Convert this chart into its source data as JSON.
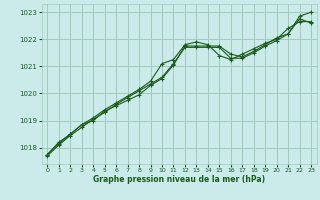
{
  "title": "Graphe pression niveau de la mer (hPa)",
  "bg_color": "#cbeaea",
  "grid_color": "#a0ccbb",
  "line_color": "#1a5c1a",
  "xlim": [
    -0.5,
    23.5
  ],
  "ylim": [
    1017.4,
    1023.3
  ],
  "yticks": [
    1018,
    1019,
    1020,
    1021,
    1022,
    1023
  ],
  "xticks": [
    0,
    1,
    2,
    3,
    4,
    5,
    6,
    7,
    8,
    9,
    10,
    11,
    12,
    13,
    14,
    15,
    16,
    17,
    18,
    19,
    20,
    21,
    22,
    23
  ],
  "series1_x": [
    0,
    1,
    2,
    3,
    4,
    5,
    6,
    7,
    8,
    9,
    10,
    11,
    12,
    13,
    14,
    15,
    16,
    17,
    18,
    19,
    20,
    21,
    22,
    23
  ],
  "series1_y": [
    1017.75,
    1018.2,
    1018.5,
    1018.85,
    1019.0,
    1019.35,
    1019.55,
    1019.75,
    1019.95,
    1020.3,
    1020.55,
    1021.05,
    1021.75,
    1021.75,
    1021.75,
    1021.75,
    1021.45,
    1021.35,
    1021.55,
    1021.8,
    1022.05,
    1022.2,
    1022.85,
    1023.0
  ],
  "series2_x": [
    0,
    1,
    2,
    3,
    4,
    5,
    6,
    7,
    8,
    9,
    10,
    11,
    12,
    13,
    14,
    15,
    16,
    17,
    18,
    19,
    20,
    21,
    22,
    23
  ],
  "series2_y": [
    1017.75,
    1018.15,
    1018.5,
    1018.85,
    1019.1,
    1019.4,
    1019.65,
    1019.9,
    1020.15,
    1020.45,
    1021.1,
    1021.25,
    1021.8,
    1021.9,
    1021.8,
    1021.4,
    1021.25,
    1021.45,
    1021.65,
    1021.85,
    1022.0,
    1022.4,
    1022.65,
    1022.65
  ],
  "series3_x": [
    0,
    1,
    2,
    3,
    4,
    5,
    6,
    7,
    8,
    9,
    10,
    11,
    12,
    13,
    14,
    15,
    16,
    17,
    18,
    19,
    20,
    21,
    22,
    23
  ],
  "series3_y": [
    1017.7,
    1018.1,
    1018.45,
    1018.75,
    1019.05,
    1019.3,
    1019.6,
    1019.85,
    1020.1,
    1020.35,
    1020.6,
    1021.1,
    1021.7,
    1021.7,
    1021.7,
    1021.7,
    1021.3,
    1021.3,
    1021.5,
    1021.75,
    1021.95,
    1022.2,
    1022.75,
    1022.6
  ]
}
